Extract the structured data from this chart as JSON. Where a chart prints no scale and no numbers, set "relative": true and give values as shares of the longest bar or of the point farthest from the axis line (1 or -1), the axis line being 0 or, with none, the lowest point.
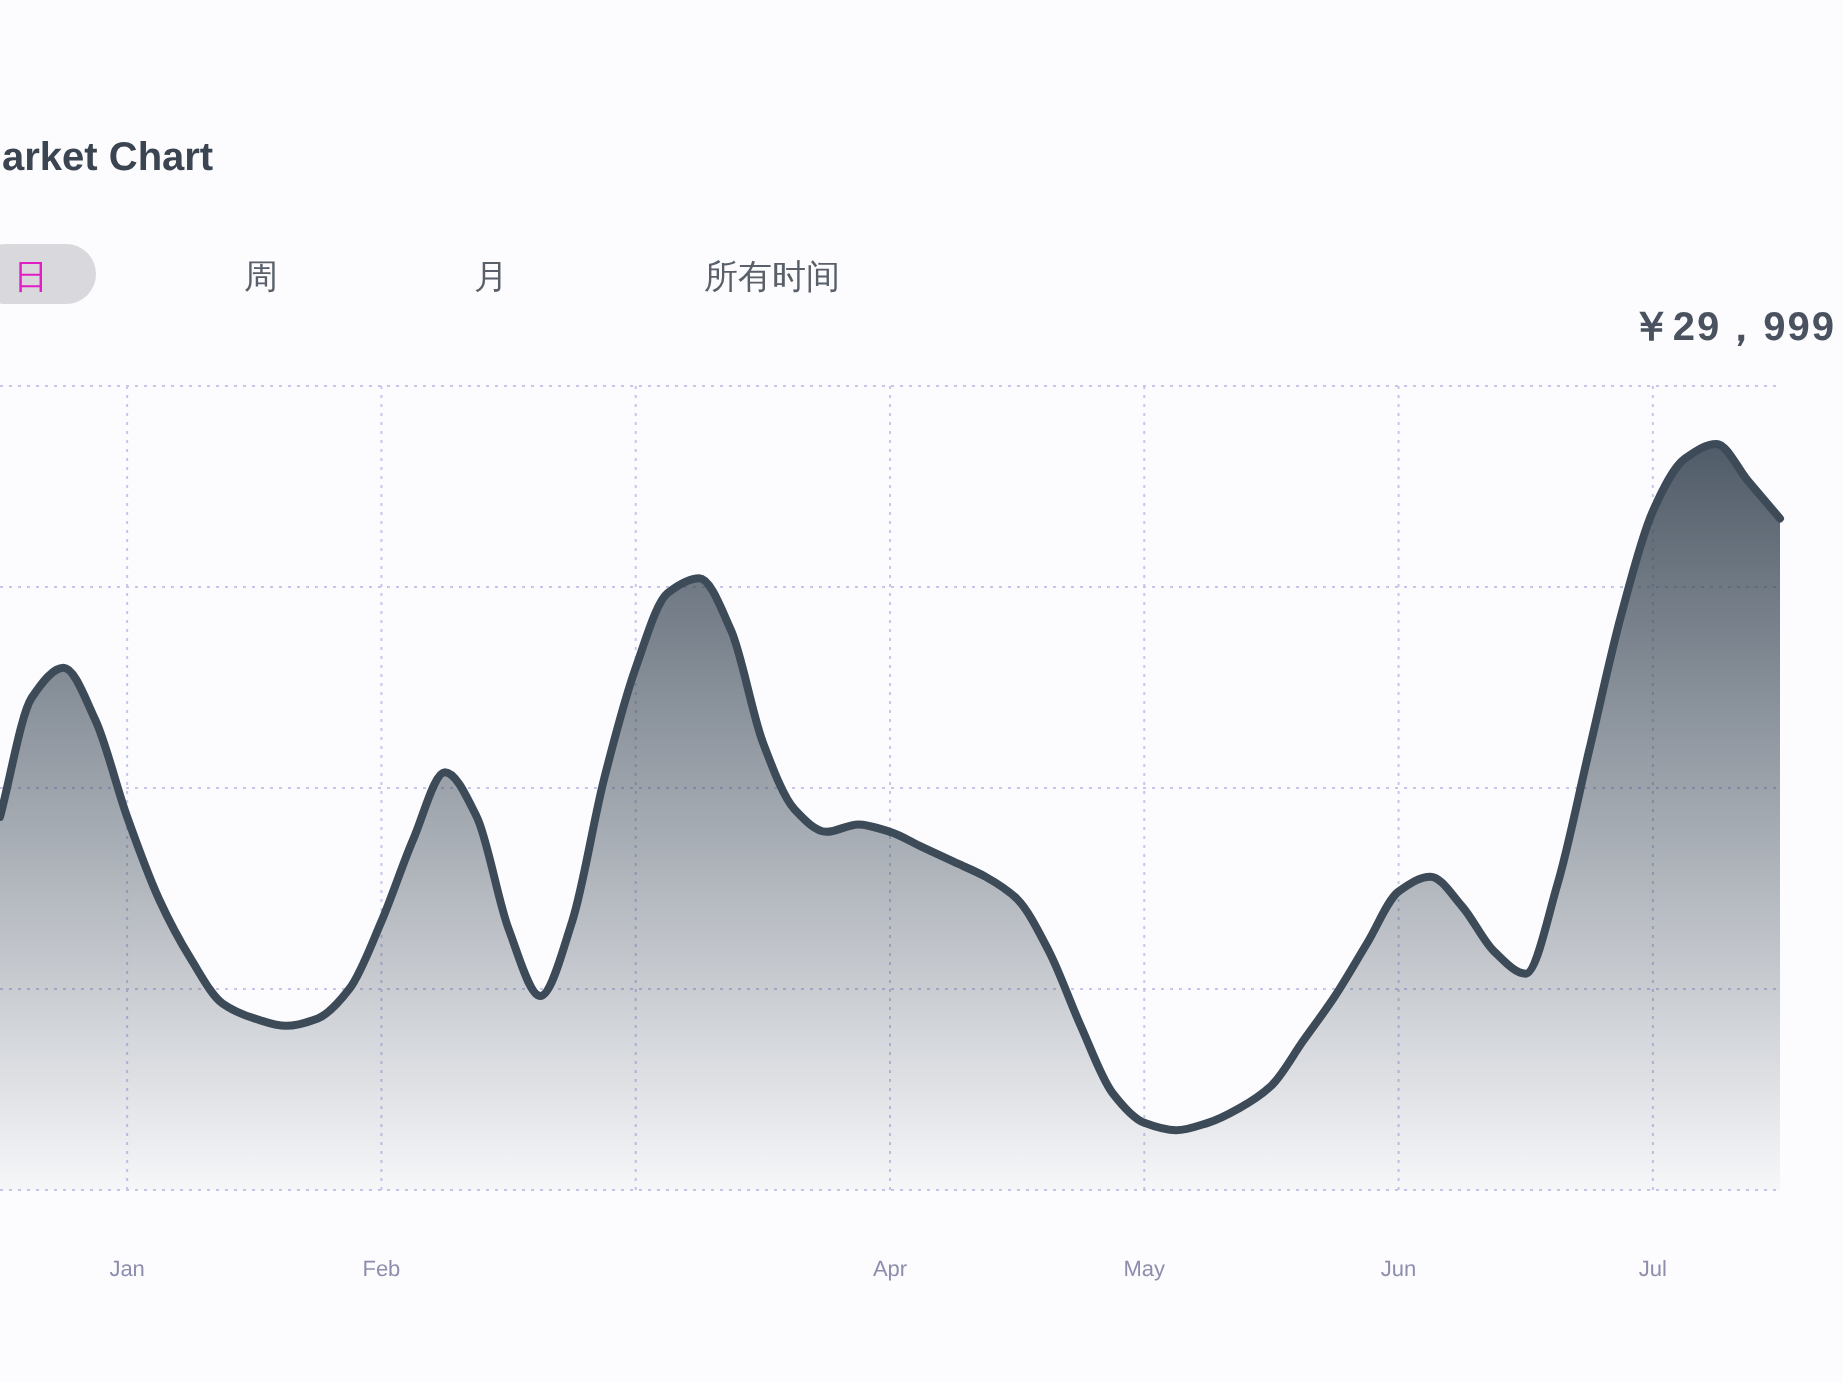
{
  "chart_data": {
    "type": "area",
    "title": "arket Chart",
    "annotations": [
      "日",
      "周",
      "月",
      "所有时间",
      "￥29，999"
    ],
    "categories": [
      null,
      null,
      null,
      null,
      "Jan",
      null,
      null,
      null,
      null,
      null,
      null,
      null,
      "Feb",
      null,
      null,
      null,
      null,
      null,
      null,
      null,
      null,
      null,
      null,
      null,
      null,
      null,
      null,
      null,
      "Apr",
      null,
      null,
      null,
      null,
      null,
      null,
      null,
      "May",
      null,
      null,
      null,
      null,
      null,
      null,
      null,
      "Jun",
      null,
      null,
      null,
      null,
      null,
      null,
      null,
      "Jul",
      null,
      null,
      null,
      null
    ],
    "values": [
      0.5,
      0.66,
      0.7,
      0.63,
      0.5,
      0.39,
      0.31,
      0.25,
      0.23,
      0.22,
      0.23,
      0.27,
      0.36,
      0.47,
      0.56,
      0.5,
      0.35,
      0.26,
      0.36,
      0.55,
      0.7,
      0.8,
      0.82,
      0.75,
      0.6,
      0.51,
      0.48,
      0.49,
      0.48,
      0.46,
      0.44,
      0.42,
      0.39,
      0.32,
      0.22,
      0.13,
      0.09,
      0.08,
      0.09,
      0.11,
      0.14,
      0.2,
      0.26,
      0.33,
      0.4,
      0.42,
      0.38,
      0.32,
      0.29,
      0.41,
      0.59,
      0.77,
      0.91,
      0.98,
      1,
      0.95,
      0.9
    ],
    "relative": true,
    "color": "#3d4a58",
    "grid": true
  }
}
